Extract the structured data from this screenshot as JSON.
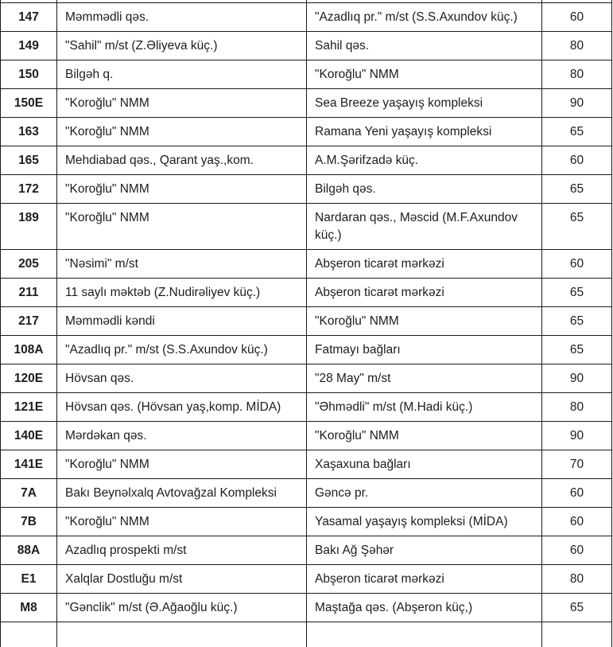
{
  "table": {
    "rows": [
      {
        "route": "147",
        "origin": "Məmmədli qəs.",
        "destination": "\"Azadlıq pr.\" m/st (S.S.Axundov küç.)",
        "fare": "60"
      },
      {
        "route": "149",
        "origin": "\"Sahil\" m/st (Z.Əliyeva küç.)",
        "destination": "Sahil qəs.",
        "fare": "80"
      },
      {
        "route": "150",
        "origin": "Bilgəh q.",
        "destination": "\"Koroğlu\" NMM",
        "fare": "80"
      },
      {
        "route": "150E",
        "origin": "\"Koroğlu\" NMM",
        "destination": "Sea Breeze yaşayış kompleksi",
        "fare": "90"
      },
      {
        "route": "163",
        "origin": "\"Koroğlu\" NMM",
        "destination": "Ramana Yeni yaşayış kompleksi",
        "fare": "65"
      },
      {
        "route": "165",
        "origin": "Mehdiabad qəs., Qarant yaş.,kom.",
        "destination": "A.M.Şərifzadə küç.",
        "fare": "60"
      },
      {
        "route": "172",
        "origin": "\"Koroğlu\" NMM",
        "destination": "Bilgəh qəs.",
        "fare": "65"
      },
      {
        "route": "189",
        "origin": "\"Koroğlu\" NMM",
        "destination": "Nardaran qəs., Məscid (M.F.Axundov küç.)",
        "fare": "65"
      },
      {
        "route": "205",
        "origin": "\"Nəsimi\" m/st",
        "destination": "Abşeron ticarət mərkəzi",
        "fare": "60"
      },
      {
        "route": "211",
        "origin": "11 saylı məktəb (Z.Nudirəliyev küç.)",
        "destination": "Abşeron ticarət mərkəzi",
        "fare": "65"
      },
      {
        "route": "217",
        "origin": "Məmmədli kəndi",
        "destination": "\"Koroğlu\" NMM",
        "fare": "65"
      },
      {
        "route": "108A",
        "origin": "\"Azadlıq pr.\" m/st (S.S.Axundov küç.)",
        "destination": "Fatmayı bağları",
        "fare": "65"
      },
      {
        "route": "120E",
        "origin": "Hövsan qəs.",
        "destination": "\"28 May\" m/st",
        "fare": "90"
      },
      {
        "route": "121E",
        "origin": "Hövsan qəs. (Hövsan yaş,komp. MİDA)",
        "destination": "\"Əhmədli\" m/st (M.Hadi küç.)",
        "fare": "80"
      },
      {
        "route": "140E",
        "origin": "Mərdəkan qəs.",
        "destination": "\"Koroğlu\" NMM",
        "fare": "90"
      },
      {
        "route": "141E",
        "origin": "\"Koroğlu\" NMM",
        "destination": "Xaşaxuna bağları",
        "fare": "70"
      },
      {
        "route": "7A",
        "origin": "Bakı Beynəlxalq Avtovağzal Kompleksi",
        "destination": "Gəncə pr.",
        "fare": "60"
      },
      {
        "route": "7B",
        "origin": "\"Koroğlu\" NMM",
        "destination": "Yasamal yaşayış kompleksi (MİDA)",
        "fare": "60"
      },
      {
        "route": "88A",
        "origin": "Azadlıq prospekti m/st",
        "destination": "Bakı Ağ Şəhər",
        "fare": "60"
      },
      {
        "route": "E1",
        "origin": "Xalqlar Dostluğu m/st",
        "destination": "Abşeron ticarət mərkəzi",
        "fare": "80"
      },
      {
        "route": "M8",
        "origin": "\"Gənclik\" m/st (Ə.Ağaoğlu küç.)",
        "destination": "Maştağa qəs. (Abşeron küç,)",
        "fare": "65"
      }
    ]
  },
  "colors": {
    "border": "#1a1a1a",
    "route_column_bg": "#f1f1f2",
    "text": "#1d1d1f",
    "cell_bg": "#ffffff"
  }
}
